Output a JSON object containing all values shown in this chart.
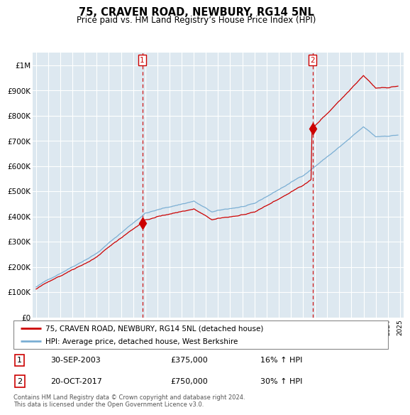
{
  "title": "75, CRAVEN ROAD, NEWBURY, RG14 5NL",
  "subtitle": "Price paid vs. HM Land Registry’s House Price Index (HPI)",
  "footnote": "Contains HM Land Registry data © Crown copyright and database right 2024.\nThis data is licensed under the Open Government Licence v3.0.",
  "legend_line1": "75, CRAVEN ROAD, NEWBURY, RG14 5NL (detached house)",
  "legend_line2": "HPI: Average price, detached house, West Berkshire",
  "transaction1_date": "30-SEP-2003",
  "transaction1_price": "£375,000",
  "transaction1_hpi": "16% ↑ HPI",
  "transaction1_year": 2003.75,
  "transaction1_value": 375000,
  "transaction2_date": "20-OCT-2017",
  "transaction2_price": "£750,000",
  "transaction2_hpi": "30% ↑ HPI",
  "transaction2_year": 2017.79,
  "transaction2_value": 750000,
  "red_color": "#cc0000",
  "blue_color": "#7bafd4",
  "background_color": "#dde8f0",
  "grid_color": "#ffffff",
  "ylim": [
    0,
    1050000
  ],
  "xlim": [
    1994.7,
    2025.3
  ]
}
